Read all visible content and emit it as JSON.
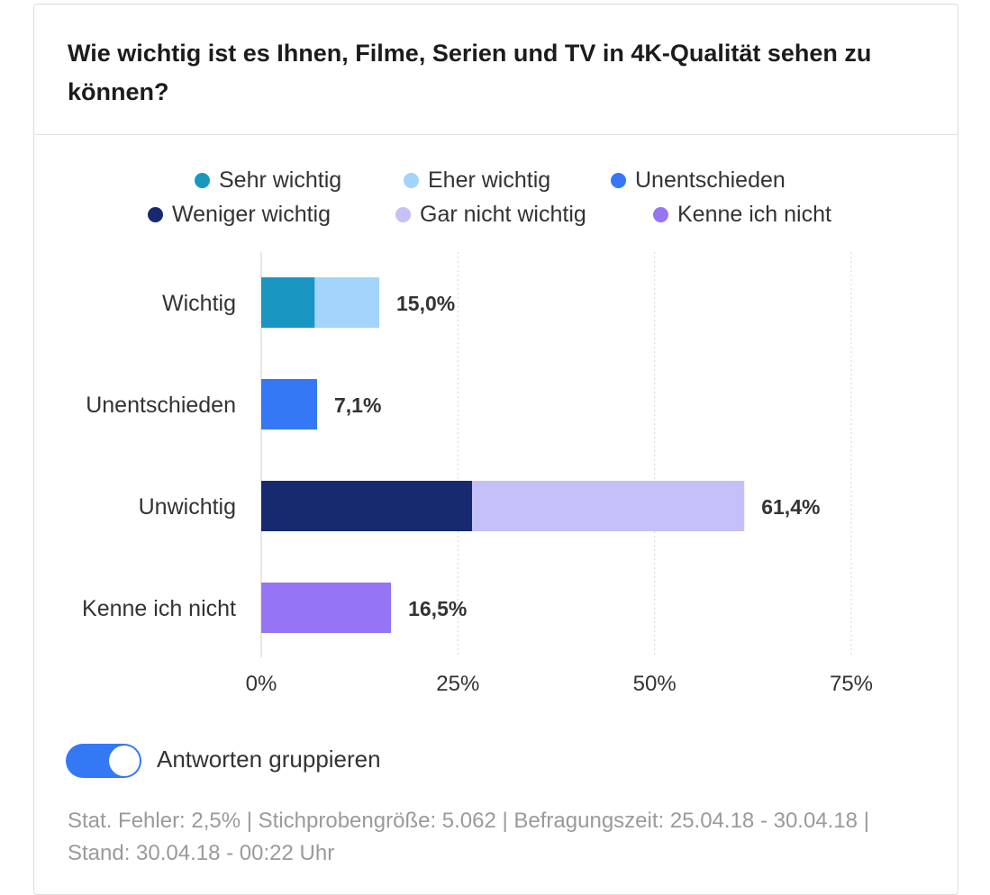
{
  "title": "Wie wichtig ist es Ihnen, Filme, Serien und TV in 4K-Qualität sehen zu können?",
  "legend": [
    {
      "label": "Sehr wichtig",
      "color": "#1a96c2"
    },
    {
      "label": "Eher wichtig",
      "color": "#a3d4fb"
    },
    {
      "label": "Unentschieden",
      "color": "#3478f6"
    },
    {
      "label": "Weniger wichtig",
      "color": "#172a70"
    },
    {
      "label": "Gar nicht wichtig",
      "color": "#c4c0f8"
    },
    {
      "label": "Kenne ich nicht",
      "color": "#9575f5"
    }
  ],
  "chart_data": {
    "type": "bar",
    "orientation": "horizontal",
    "stacked": true,
    "categories": [
      "Wichtig",
      "Unentschieden",
      "Unwichtig",
      "Kenne ich nicht"
    ],
    "series": [
      {
        "name": "Sehr wichtig",
        "color": "#1a96c2",
        "values": [
          6.8,
          0,
          0,
          0
        ]
      },
      {
        "name": "Eher wichtig",
        "color": "#a3d4fb",
        "values": [
          8.2,
          0,
          0,
          0
        ]
      },
      {
        "name": "Unentschieden",
        "color": "#3478f6",
        "values": [
          0,
          7.1,
          0,
          0
        ]
      },
      {
        "name": "Weniger wichtig",
        "color": "#172a70",
        "values": [
          0,
          0,
          26.8,
          0
        ]
      },
      {
        "name": "Gar nicht wichtig",
        "color": "#c4c0f8",
        "values": [
          0,
          0,
          34.6,
          0
        ]
      },
      {
        "name": "Kenne ich nicht",
        "color": "#9575f5",
        "values": [
          0,
          0,
          0,
          16.5
        ]
      }
    ],
    "totals": [
      15.0,
      7.1,
      61.4,
      16.5
    ],
    "total_labels": [
      "15,0%",
      "7,1%",
      "61,4%",
      "16,5%"
    ],
    "xlim": [
      0,
      75
    ],
    "xticks": [
      0,
      25,
      50,
      75
    ],
    "xtick_labels": [
      "0%",
      "25%",
      "50%",
      "75%"
    ],
    "grid": true,
    "legend_position": "top"
  },
  "toggle": {
    "label": "Antworten gruppieren",
    "on": true
  },
  "footer": "Stat. Fehler: 2,5% | Stichprobengröße: 5.062 | Befragungszeit: 25.04.18 - 30.04.18 | Stand: 30.04.18 - 00:22 Uhr"
}
